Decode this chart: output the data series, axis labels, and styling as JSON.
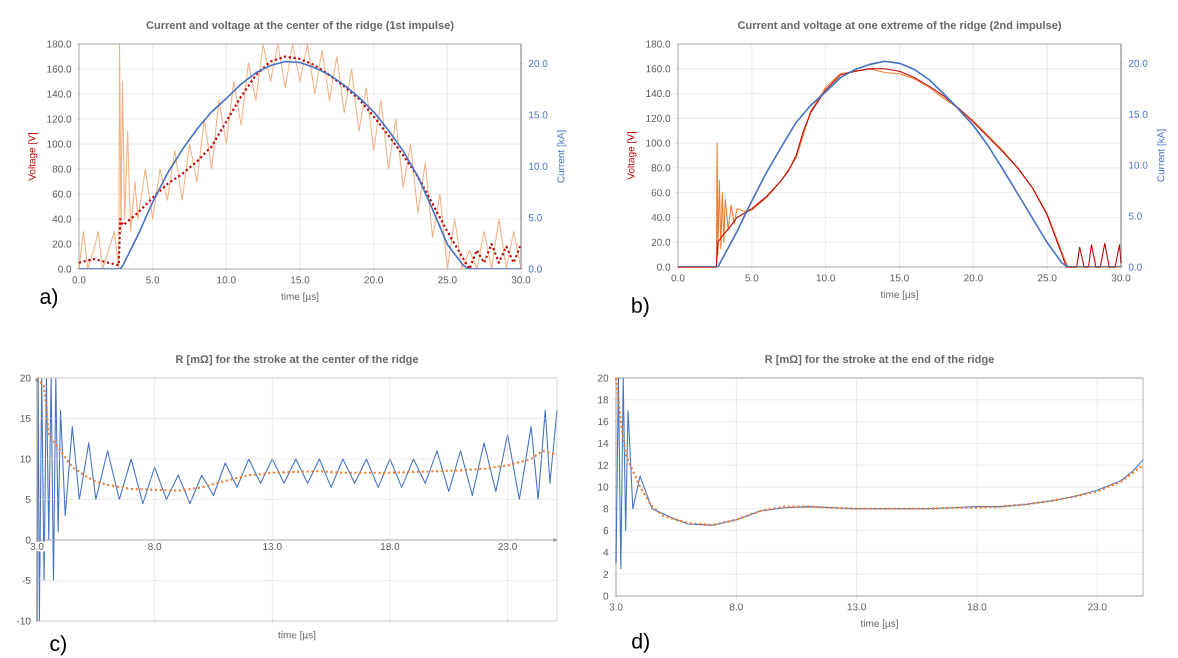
{
  "chart_data": [
    {
      "type": "line",
      "title": "Current and voltage at the center of the ridge (1st impulse)",
      "xlabel": "time [µs]",
      "ylabel": "Voltage [V]",
      "y2label": "Current [kA]",
      "annotations": [
        "a)"
      ],
      "grid": true,
      "xlim": [
        0,
        30
      ],
      "xticks": [
        {
          "value": 0,
          "label": "0.0"
        },
        {
          "value": 5,
          "label": "5.0"
        },
        {
          "value": 10,
          "label": "10.0"
        },
        {
          "value": 15,
          "label": "15.0"
        },
        {
          "value": 20,
          "label": "20.0"
        },
        {
          "value": 25,
          "label": "25.0"
        },
        {
          "value": 30,
          "label": "30.0"
        }
      ],
      "ylim": [
        0,
        180
      ],
      "yticks": [
        {
          "value": 0,
          "label": "0.0"
        },
        {
          "value": 20,
          "label": "20.0"
        },
        {
          "value": 40,
          "label": "40.0"
        },
        {
          "value": 60,
          "label": "60.0"
        },
        {
          "value": 80,
          "label": "80.0"
        },
        {
          "value": 100,
          "label": "100.0"
        },
        {
          "value": 120,
          "label": "120.0"
        },
        {
          "value": 140,
          "label": "140.0"
        },
        {
          "value": 160,
          "label": "160.0"
        },
        {
          "value": 180,
          "label": "180.0"
        }
      ],
      "y2lim": [
        0,
        21.9
      ],
      "y2ticks": [
        {
          "value": 0,
          "label": "0.0"
        },
        {
          "value": 5,
          "label": "5.0"
        },
        {
          "value": 10,
          "label": "10.0"
        },
        {
          "value": 15,
          "label": "15.0"
        },
        {
          "value": 20,
          "label": "20.0"
        }
      ],
      "series": [
        {
          "color": "#f4b183",
          "line_style": "solid",
          "x": [
            0,
            0.3,
            0.6,
            1,
            1.3,
            1.6,
            2,
            2.4,
            2.7,
            2.75,
            2.85,
            2.95,
            3.1,
            3.3,
            3.5,
            3.8,
            4,
            4.5,
            5,
            5.5,
            6,
            6.5,
            7,
            7.5,
            8,
            8.5,
            9,
            9.5,
            10,
            10.5,
            11,
            11.5,
            12,
            12.5,
            13,
            13.5,
            14,
            14.5,
            15,
            15.5,
            16,
            16.5,
            17,
            17.5,
            18,
            18.5,
            19,
            19.5,
            20,
            20.5,
            21,
            21.5,
            22,
            22.5,
            23,
            23.5,
            24,
            24.5,
            25,
            25.5,
            26,
            26.5,
            27,
            27.5,
            28,
            28.5,
            29,
            29.5,
            30
          ],
          "values": [
            0,
            30,
            0,
            15,
            30,
            0,
            15,
            30,
            0,
            180,
            30,
            150,
            40,
            110,
            30,
            70,
            40,
            80,
            40,
            80,
            55,
            95,
            55,
            100,
            70,
            120,
            80,
            135,
            100,
            150,
            115,
            165,
            135,
            180,
            150,
            180,
            145,
            180,
            150,
            180,
            140,
            175,
            135,
            170,
            125,
            160,
            110,
            145,
            95,
            135,
            80,
            120,
            65,
            100,
            45,
            85,
            25,
            60,
            0,
            40,
            0,
            15,
            0,
            30,
            0,
            40,
            0,
            30,
            0
          ]
        },
        {
          "color": "#c00000",
          "line_style": "dotted",
          "x": [
            0,
            1,
            2,
            2.7,
            2.8,
            3,
            4,
            5,
            6,
            7,
            8,
            9,
            10,
            11,
            12,
            13,
            14,
            15,
            16,
            17,
            18,
            19,
            20,
            21,
            22,
            23,
            24,
            25,
            26,
            26.5,
            27,
            27.5,
            28,
            28.5,
            29,
            29.5,
            30
          ],
          "values": [
            5,
            8,
            5,
            3,
            40,
            35,
            45,
            57,
            68,
            76,
            86,
            98,
            118,
            138,
            155,
            166,
            170,
            168,
            163,
            155,
            146,
            136,
            122,
            107,
            91,
            74,
            52,
            30,
            10,
            0,
            15,
            5,
            20,
            5,
            18,
            5,
            20
          ]
        },
        {
          "color": "#4472c4",
          "line_style": "solid",
          "axis": "y2",
          "x": [
            0,
            2.8,
            3,
            4,
            5,
            6,
            7,
            8,
            9,
            10,
            11,
            12,
            13,
            14,
            15,
            16,
            17,
            18,
            19,
            20,
            21,
            22,
            23,
            24,
            25,
            26,
            26.4,
            30
          ],
          "values": [
            0,
            0,
            0.4,
            3.3,
            6.5,
            9.3,
            11.6,
            13.6,
            15.3,
            16.6,
            18.0,
            19.1,
            19.8,
            20.2,
            20.1,
            19.6,
            18.9,
            17.9,
            16.7,
            15.3,
            13.5,
            11.5,
            9.0,
            5.8,
            2.4,
            0.5,
            0,
            0
          ]
        }
      ]
    },
    {
      "type": "line",
      "title": "Current and voltage at one extreme of the ridge (2nd impulse)",
      "xlabel": "time [µs]",
      "ylabel": "Voltage [V]",
      "y2label": "Current [kA]",
      "annotations": [
        "b)"
      ],
      "grid": true,
      "xlim": [
        0,
        30
      ],
      "xticks": [
        {
          "value": 0,
          "label": "0.0"
        },
        {
          "value": 5,
          "label": "5.0"
        },
        {
          "value": 10,
          "label": "10.0"
        },
        {
          "value": 15,
          "label": "15.0"
        },
        {
          "value": 20,
          "label": "20.0"
        },
        {
          "value": 25,
          "label": "25.0"
        },
        {
          "value": 30,
          "label": "30.0"
        }
      ],
      "ylim": [
        0,
        180
      ],
      "yticks": [
        {
          "value": 0,
          "label": "0.0"
        },
        {
          "value": 20,
          "label": "20.0"
        },
        {
          "value": 40,
          "label": "40.0"
        },
        {
          "value": 60,
          "label": "60.0"
        },
        {
          "value": 80,
          "label": "80.0"
        },
        {
          "value": 100,
          "label": "100.0"
        },
        {
          "value": 120,
          "label": "120.0"
        },
        {
          "value": 140,
          "label": "140.0"
        },
        {
          "value": 160,
          "label": "160.0"
        },
        {
          "value": 180,
          "label": "180.0"
        }
      ],
      "y2lim": [
        0,
        21.9
      ],
      "y2ticks": [
        {
          "value": 0,
          "label": "0.0"
        },
        {
          "value": 5,
          "label": "5.0"
        },
        {
          "value": 10,
          "label": "10.0"
        },
        {
          "value": 15,
          "label": "15.0"
        },
        {
          "value": 20,
          "label": "20.0"
        }
      ],
      "series": [
        {
          "color": "#ed7d31",
          "line_style": "solid",
          "x": [
            0,
            2.6,
            2.65,
            2.7,
            2.8,
            2.9,
            3.0,
            3.1,
            3.2,
            3.4,
            3.6,
            3.8,
            4,
            4.5,
            5,
            6,
            7,
            8,
            9,
            10,
            11,
            12,
            13,
            14,
            15,
            16,
            17,
            18,
            19,
            20,
            21,
            22,
            23,
            24,
            25,
            26,
            26.4,
            30
          ],
          "values": [
            0,
            0,
            100,
            10,
            70,
            15,
            60,
            20,
            55,
            30,
            50,
            35,
            47,
            45,
            46,
            56,
            70,
            88,
            126,
            145,
            156,
            158,
            160,
            157,
            156,
            152,
            145,
            136,
            128,
            118,
            106,
            94,
            80,
            64,
            43,
            12,
            0,
            0
          ]
        },
        {
          "color": "#c00000",
          "line_style": "solid",
          "x": [
            0,
            2.6,
            2.7,
            3,
            3.5,
            4,
            5,
            6,
            7,
            7.5,
            8,
            8.5,
            9,
            10,
            11,
            12,
            13,
            14,
            15,
            16,
            17,
            18,
            19,
            20,
            21,
            22,
            23,
            24,
            25,
            26,
            26.3,
            27,
            27.2,
            27.5,
            27.8,
            28,
            28.3,
            28.6,
            28.9,
            29.2,
            29.6,
            29.9,
            30
          ],
          "values": [
            0,
            0,
            20,
            25,
            32,
            40,
            47,
            57,
            70,
            78,
            90,
            110,
            125,
            143,
            155,
            158,
            160,
            160,
            158,
            153,
            146,
            138,
            128,
            117,
            105,
            93,
            80,
            64,
            42,
            10,
            0,
            0,
            16,
            0,
            0,
            18,
            0,
            0,
            19,
            0,
            0,
            18,
            3
          ]
        },
        {
          "color": "#4472c4",
          "line_style": "solid",
          "axis": "y2",
          "x": [
            0,
            2.7,
            3,
            4,
            5,
            6,
            7,
            8,
            9,
            10,
            11,
            12,
            13,
            14,
            15,
            16,
            17,
            18,
            19,
            20,
            21,
            22,
            23,
            24,
            25,
            26,
            26.4,
            30
          ],
          "values": [
            0,
            0,
            0.8,
            3.5,
            6.5,
            9.3,
            11.8,
            14.2,
            15.9,
            17.2,
            18.6,
            19.4,
            19.9,
            20.2,
            20.0,
            19.4,
            18.4,
            17.0,
            15.5,
            13.9,
            11.9,
            9.6,
            7.2,
            4.8,
            2.4,
            0.4,
            0,
            0
          ]
        }
      ]
    },
    {
      "type": "line",
      "title": "R [mΩ] for the stroke at the center of the ridge",
      "xlabel": "time [µs]",
      "annotations": [
        "c)"
      ],
      "grid": true,
      "xlim": [
        3,
        25.1
      ],
      "xticks": [
        {
          "value": 3,
          "label": "3.0"
        },
        {
          "value": 8,
          "label": "8.0"
        },
        {
          "value": 13,
          "label": "13.0"
        },
        {
          "value": 18,
          "label": "18.0"
        },
        {
          "value": 23,
          "label": "23.0"
        }
      ],
      "ylim": [
        -10,
        20
      ],
      "yticks": [
        -10,
        -5,
        0,
        5,
        10,
        15,
        20
      ],
      "series": [
        {
          "color": "#4472c4",
          "line_style": "solid",
          "x": [
            3,
            3.05,
            3.1,
            3.2,
            3.3,
            3.4,
            3.5,
            3.6,
            3.7,
            3.8,
            3.9,
            4,
            4.2,
            4.5,
            4.8,
            5.2,
            5.5,
            6,
            6.5,
            7,
            7.5,
            8,
            8.5,
            9,
            9.5,
            10,
            10.5,
            11,
            11.5,
            12,
            12.5,
            13,
            13.5,
            14,
            14.5,
            15,
            15.5,
            16,
            16.5,
            17,
            17.5,
            18,
            18.5,
            19,
            19.5,
            20,
            20.5,
            21,
            21.5,
            22,
            22.5,
            23,
            23.5,
            24,
            24.3,
            24.6,
            24.8,
            25.1
          ],
          "values": [
            -10,
            20,
            -10,
            20,
            -5,
            20,
            0,
            20,
            -5,
            20,
            1,
            16,
            3,
            14,
            5,
            12,
            5,
            11,
            5,
            10,
            4.5,
            9,
            5,
            8,
            4.5,
            8,
            5.5,
            9.5,
            6.5,
            10,
            7,
            10,
            7,
            10,
            7,
            10,
            6.5,
            10,
            7,
            10,
            6.5,
            10,
            6.5,
            10,
            7,
            11,
            6,
            11,
            5.5,
            12,
            6,
            13,
            5,
            14,
            5,
            16,
            7,
            16
          ]
        },
        {
          "color": "#ed7d31",
          "line_style": "dotted",
          "x": [
            3,
            3.3,
            3.5,
            4,
            4.5,
            5,
            5.5,
            6,
            7,
            8,
            9,
            10,
            11,
            12,
            13,
            14,
            15,
            16,
            17,
            18,
            19,
            20,
            21,
            22,
            23,
            24,
            24.5,
            25.1
          ],
          "values": [
            20,
            19,
            13,
            11,
            9,
            8,
            7.2,
            6.8,
            6.3,
            6.2,
            6.1,
            6.5,
            7.3,
            8.0,
            8.3,
            8.4,
            8.5,
            8.3,
            8.3,
            8.3,
            8.4,
            8.5,
            8.6,
            8.8,
            9.2,
            10,
            11,
            10.5
          ]
        }
      ]
    },
    {
      "type": "line",
      "title": "R [mΩ] for the stroke at the end of the ridge",
      "xlabel": "time [µs]",
      "annotations": [
        "d)"
      ],
      "grid": true,
      "xlim": [
        3,
        24.9
      ],
      "xticks": [
        {
          "value": 3,
          "label": "3.0"
        },
        {
          "value": 8,
          "label": "8.0"
        },
        {
          "value": 13,
          "label": "13.0"
        },
        {
          "value": 18,
          "label": "18.0"
        },
        {
          "value": 23,
          "label": "23.0"
        }
      ],
      "ylim": [
        0,
        20
      ],
      "yticks": [
        0,
        2,
        4,
        6,
        8,
        10,
        12,
        14,
        16,
        18,
        20
      ],
      "series": [
        {
          "color": "#4472c4",
          "line_style": "solid",
          "x": [
            3,
            3.1,
            3.2,
            3.3,
            3.4,
            3.5,
            3.7,
            4,
            4.5,
            5,
            5.5,
            6,
            7,
            8,
            9,
            10,
            11,
            12,
            13,
            14,
            15,
            16,
            17,
            18,
            19,
            20,
            21,
            22,
            23,
            24,
            24.5,
            24.9
          ],
          "values": [
            3,
            20,
            2.5,
            20,
            6,
            17,
            8,
            11,
            8,
            7.5,
            7,
            6.6,
            6.5,
            7,
            7.8,
            8.1,
            8.2,
            8.1,
            8.0,
            8.0,
            8.0,
            8.0,
            8.1,
            8.2,
            8.2,
            8.4,
            8.7,
            9.1,
            9.7,
            10.6,
            11.5,
            12.5
          ]
        },
        {
          "color": "#ed7d31",
          "line_style": "dotted",
          "x": [
            3,
            3.2,
            3.4,
            3.7,
            4,
            4.5,
            5,
            6,
            7,
            8,
            9,
            10,
            11,
            12,
            13,
            14,
            15,
            16,
            17,
            18,
            19,
            20,
            21,
            22,
            23,
            24,
            24.9
          ],
          "values": [
            20,
            16,
            13,
            11.5,
            10,
            8.2,
            7.3,
            6.7,
            6.5,
            7,
            7.8,
            8.2,
            8.2,
            8.1,
            8,
            8,
            8,
            8,
            8.1,
            8.1,
            8.2,
            8.4,
            8.7,
            9.1,
            9.6,
            10.5,
            12
          ]
        }
      ]
    }
  ]
}
